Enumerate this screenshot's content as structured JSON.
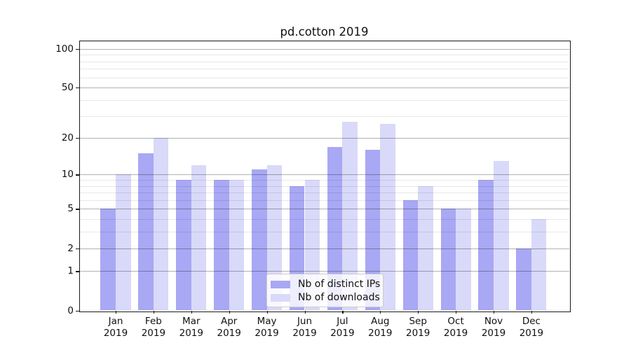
{
  "title": "pd.cotton 2019",
  "chart_data": {
    "type": "bar",
    "categories": [
      "Jan",
      "Feb",
      "Mar",
      "Apr",
      "May",
      "Jun",
      "Jul",
      "Aug",
      "Sep",
      "Oct",
      "Nov",
      "Dec"
    ],
    "year_label": "2019",
    "series": [
      {
        "name": "Nb of distinct IPs",
        "color": "#a8a8f4",
        "values": [
          5,
          15,
          9,
          9,
          11,
          8,
          17,
          16,
          6,
          5,
          9,
          2
        ]
      },
      {
        "name": "Nb of downloads",
        "color": "#d9d9f9",
        "values": [
          10,
          20,
          12,
          9,
          12,
          9,
          27,
          26,
          8,
          5,
          13,
          4
        ]
      }
    ],
    "yscale": "log1p",
    "ylim": [
      0,
      116
    ],
    "y_major_ticks": [
      0,
      1,
      2,
      5,
      10,
      20,
      50,
      100
    ],
    "y_minor_ticks": [
      3,
      4,
      6,
      7,
      8,
      9,
      30,
      40,
      60,
      70,
      80,
      90
    ],
    "grid": true,
    "legend_position": "lower center"
  },
  "style_colors": {
    "major_grid": "rgba(0,0,0,0.30)",
    "minor_grid": "rgba(0,0,0,0.09)",
    "spine": "#1a1a1a",
    "background": "#ffffff"
  }
}
